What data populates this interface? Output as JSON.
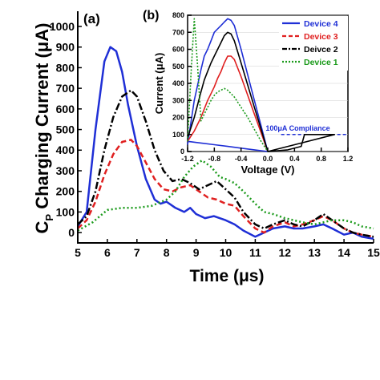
{
  "chart_data": [
    {
      "panel": "(a)",
      "type": "line",
      "xlabel": "Time (μs)",
      "ylabel": "CP Charging Current (μA)",
      "ylabel_main": "C",
      "ylabel_sub": "P",
      "ylabel_rest": " Charging Current (μA)",
      "xlim": [
        5,
        15
      ],
      "ylim": [
        -50,
        1000
      ],
      "xticks": [
        "5",
        "6",
        "7",
        "8",
        "9",
        "10",
        "11",
        "12",
        "13",
        "14",
        "15"
      ],
      "yticks": [
        "0",
        "100",
        "200",
        "300",
        "400",
        "500",
        "600",
        "700",
        "800",
        "900",
        "1000"
      ],
      "series": [
        {
          "name": "Device 4",
          "color": "#1f2fd6",
          "dash": "",
          "x": [
            5.0,
            5.3,
            5.6,
            5.9,
            6.1,
            6.3,
            6.5,
            6.7,
            7.0,
            7.3,
            7.6,
            7.8,
            8.0,
            8.3,
            8.6,
            8.8,
            9.0,
            9.3,
            9.6,
            10.0,
            10.3,
            10.6,
            11.0,
            11.3,
            11.6,
            12.0,
            12.3,
            12.6,
            13.0,
            13.3,
            13.6,
            14.0,
            14.3,
            14.6,
            15.0
          ],
          "y": [
            30,
            100,
            500,
            830,
            900,
            880,
            780,
            620,
            420,
            260,
            160,
            140,
            150,
            120,
            100,
            120,
            90,
            70,
            80,
            60,
            40,
            10,
            -20,
            0,
            20,
            30,
            20,
            20,
            30,
            40,
            20,
            -10,
            0,
            -20,
            -30
          ]
        },
        {
          "name": "Device 3",
          "color": "#e02020",
          "dash": "7,4",
          "x": [
            5.0,
            5.3,
            5.6,
            5.9,
            6.2,
            6.5,
            6.8,
            7.0,
            7.3,
            7.6,
            7.9,
            8.2,
            8.5,
            8.8,
            9.1,
            9.4,
            9.7,
            10.0,
            10.3,
            10.6,
            11.0,
            11.3,
            11.6,
            12.0,
            12.3,
            12.6,
            13.0,
            13.3,
            13.6,
            14.0,
            14.3,
            14.6,
            15.0
          ],
          "y": [
            20,
            60,
            150,
            280,
            380,
            440,
            450,
            420,
            340,
            260,
            210,
            200,
            220,
            230,
            200,
            170,
            160,
            140,
            130,
            80,
            20,
            0,
            30,
            50,
            30,
            40,
            60,
            80,
            60,
            20,
            0,
            -10,
            -20
          ]
        },
        {
          "name": "Deivce 2",
          "color": "#000000",
          "dash": "9,3,2,3",
          "x": [
            5.0,
            5.3,
            5.6,
            5.9,
            6.2,
            6.5,
            6.8,
            7.0,
            7.3,
            7.6,
            7.9,
            8.2,
            8.5,
            8.8,
            9.1,
            9.4,
            9.7,
            10.0,
            10.3,
            10.6,
            11.0,
            11.3,
            11.6,
            12.0,
            12.3,
            12.6,
            13.0,
            13.3,
            13.6,
            14.0,
            14.3,
            14.6,
            15.0
          ],
          "y": [
            40,
            80,
            200,
            400,
            560,
            660,
            690,
            660,
            540,
            400,
            300,
            250,
            260,
            240,
            210,
            230,
            250,
            210,
            170,
            100,
            40,
            20,
            40,
            60,
            40,
            30,
            60,
            90,
            60,
            20,
            0,
            -10,
            -20
          ]
        },
        {
          "name": "Device 1",
          "color": "#1a9a1a",
          "dash": "2,3",
          "x": [
            5.0,
            5.5,
            6.0,
            6.5,
            7.0,
            7.5,
            8.0,
            8.3,
            8.6,
            8.9,
            9.2,
            9.5,
            9.8,
            10.0,
            10.3,
            10.6,
            11.0,
            11.3,
            11.6,
            12.0,
            12.3,
            12.6,
            13.0,
            13.3,
            13.6,
            14.0,
            14.3,
            14.6,
            15.0
          ],
          "y": [
            10,
            50,
            110,
            120,
            120,
            130,
            160,
            200,
            270,
            320,
            350,
            320,
            270,
            260,
            240,
            200,
            140,
            100,
            90,
            70,
            60,
            50,
            40,
            50,
            60,
            60,
            50,
            30,
            20
          ]
        }
      ]
    },
    {
      "panel": "(b)",
      "type": "line",
      "xlabel": "Voltage (V)",
      "ylabel": "Current (μA)",
      "xlim": [
        -1.2,
        1.2
      ],
      "ylim": [
        0,
        800
      ],
      "xticks": [
        "-1.2",
        "-0.8",
        "-0.4",
        "0.0",
        "0.4",
        "0.8",
        "1.2"
      ],
      "yticks": [
        "0",
        "100",
        "200",
        "300",
        "400",
        "500",
        "600",
        "700",
        "800"
      ],
      "annotation": "100μA Compliance",
      "compliance_value": 100,
      "legend_position": "top-right",
      "series": [
        {
          "name": "Device 4",
          "color": "#1f2fd6",
          "dash": "",
          "x": [
            -1.2,
            -1.1,
            -1.0,
            -0.95,
            -0.9,
            -0.85,
            -0.8,
            -0.75,
            -0.7,
            -0.65,
            -0.6,
            -0.55,
            -0.5,
            -0.4,
            -0.3,
            -0.2,
            -0.1,
            0.0,
            -0.2,
            -0.4,
            -0.6,
            -0.8,
            -1.0,
            -1.2
          ],
          "y": [
            40,
            300,
            480,
            560,
            600,
            650,
            700,
            720,
            740,
            760,
            780,
            770,
            740,
            600,
            450,
            300,
            150,
            0,
            10,
            20,
            30,
            40,
            50,
            60
          ]
        },
        {
          "name": "Device 3",
          "color": "#e02020",
          "dash": "",
          "x": [
            -1.2,
            -1.1,
            -1.0,
            -0.95,
            -0.9,
            -0.85,
            -0.8,
            -0.75,
            -0.7,
            -0.65,
            -0.6,
            -0.55,
            -0.5,
            -0.4,
            -0.3,
            -0.2,
            -0.1,
            0.0
          ],
          "y": [
            60,
            120,
            200,
            250,
            300,
            340,
            380,
            430,
            470,
            520,
            560,
            560,
            540,
            440,
            330,
            220,
            110,
            0
          ]
        },
        {
          "name": "Deivce 2",
          "color": "#000000",
          "dash": "",
          "x": [
            -1.2,
            -1.1,
            -1.0,
            -0.95,
            -0.9,
            -0.85,
            -0.8,
            -0.75,
            -0.7,
            -0.65,
            -0.6,
            -0.55,
            -0.5,
            -0.4,
            -0.3,
            -0.2,
            -0.1,
            0.0,
            0.3,
            0.5,
            0.55,
            0.6,
            0.65,
            0.7,
            0.75,
            0.8,
            0.85,
            0.9,
            1.0,
            0.0
          ],
          "y": [
            80,
            200,
            350,
            420,
            470,
            520,
            560,
            600,
            640,
            680,
            700,
            690,
            650,
            520,
            390,
            260,
            130,
            0,
            10,
            30,
            100,
            100,
            100,
            100,
            100,
            100,
            100,
            100,
            100,
            0
          ]
        },
        {
          "name": "Device 1",
          "color": "#1a9a1a",
          "dash": "2,2",
          "x": [
            -1.2,
            -1.15,
            -1.1,
            -1.05,
            -1.0,
            -0.95,
            -0.9,
            -0.85,
            -0.8,
            -0.75,
            -0.7,
            -0.65,
            -0.6,
            -0.55,
            -0.5,
            -0.4,
            -0.3,
            -0.2,
            -0.1,
            0.0
          ],
          "y": [
            60,
            450,
            780,
            500,
            180,
            220,
            260,
            300,
            330,
            350,
            360,
            370,
            360,
            340,
            320,
            260,
            200,
            130,
            60,
            0
          ]
        }
      ]
    }
  ]
}
